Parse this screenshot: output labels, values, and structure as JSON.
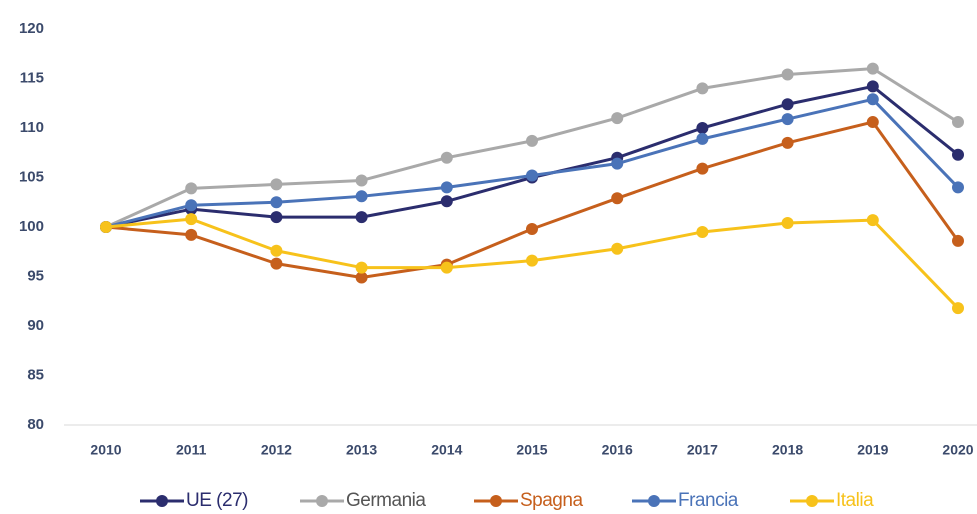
{
  "chart_data": {
    "type": "line",
    "x": [
      2010,
      2011,
      2012,
      2013,
      2014,
      2015,
      2016,
      2017,
      2018,
      2019,
      2020
    ],
    "series": [
      {
        "name": "UE (27)",
        "color": "#2b2d6e",
        "values": [
          100,
          101.8,
          101,
          101,
          102.6,
          105,
          107,
          110,
          112.4,
          114.2,
          107.3
        ]
      },
      {
        "name": "Germania",
        "color": "#a9a9a9",
        "values": [
          100,
          103.9,
          104.3,
          104.7,
          107,
          108.7,
          111,
          114,
          115.4,
          116,
          110.6
        ]
      },
      {
        "name": "Spagna",
        "color": "#c65f1c",
        "values": [
          100,
          99.2,
          96.3,
          94.9,
          96.2,
          99.8,
          102.9,
          105.9,
          108.5,
          110.6,
          98.6
        ]
      },
      {
        "name": "Francia",
        "color": "#4a73b8",
        "values": [
          100,
          102.2,
          102.5,
          103.1,
          104,
          105.2,
          106.4,
          108.9,
          110.9,
          112.9,
          104
        ]
      },
      {
        "name": "Italia",
        "color": "#f7c21b",
        "values": [
          100,
          100.8,
          97.6,
          95.9,
          95.9,
          96.6,
          97.8,
          99.5,
          100.4,
          100.7,
          91.8
        ]
      }
    ],
    "ylim": [
      80,
      120
    ],
    "yticks": [
      80,
      85,
      90,
      95,
      100,
      105,
      110,
      115,
      120
    ],
    "xlim": [
      2010,
      2020
    ],
    "xticks": [
      2010,
      2011,
      2012,
      2013,
      2014,
      2015,
      2016,
      2017,
      2018,
      2019,
      2020
    ],
    "grid": false,
    "legend": "bottom"
  }
}
